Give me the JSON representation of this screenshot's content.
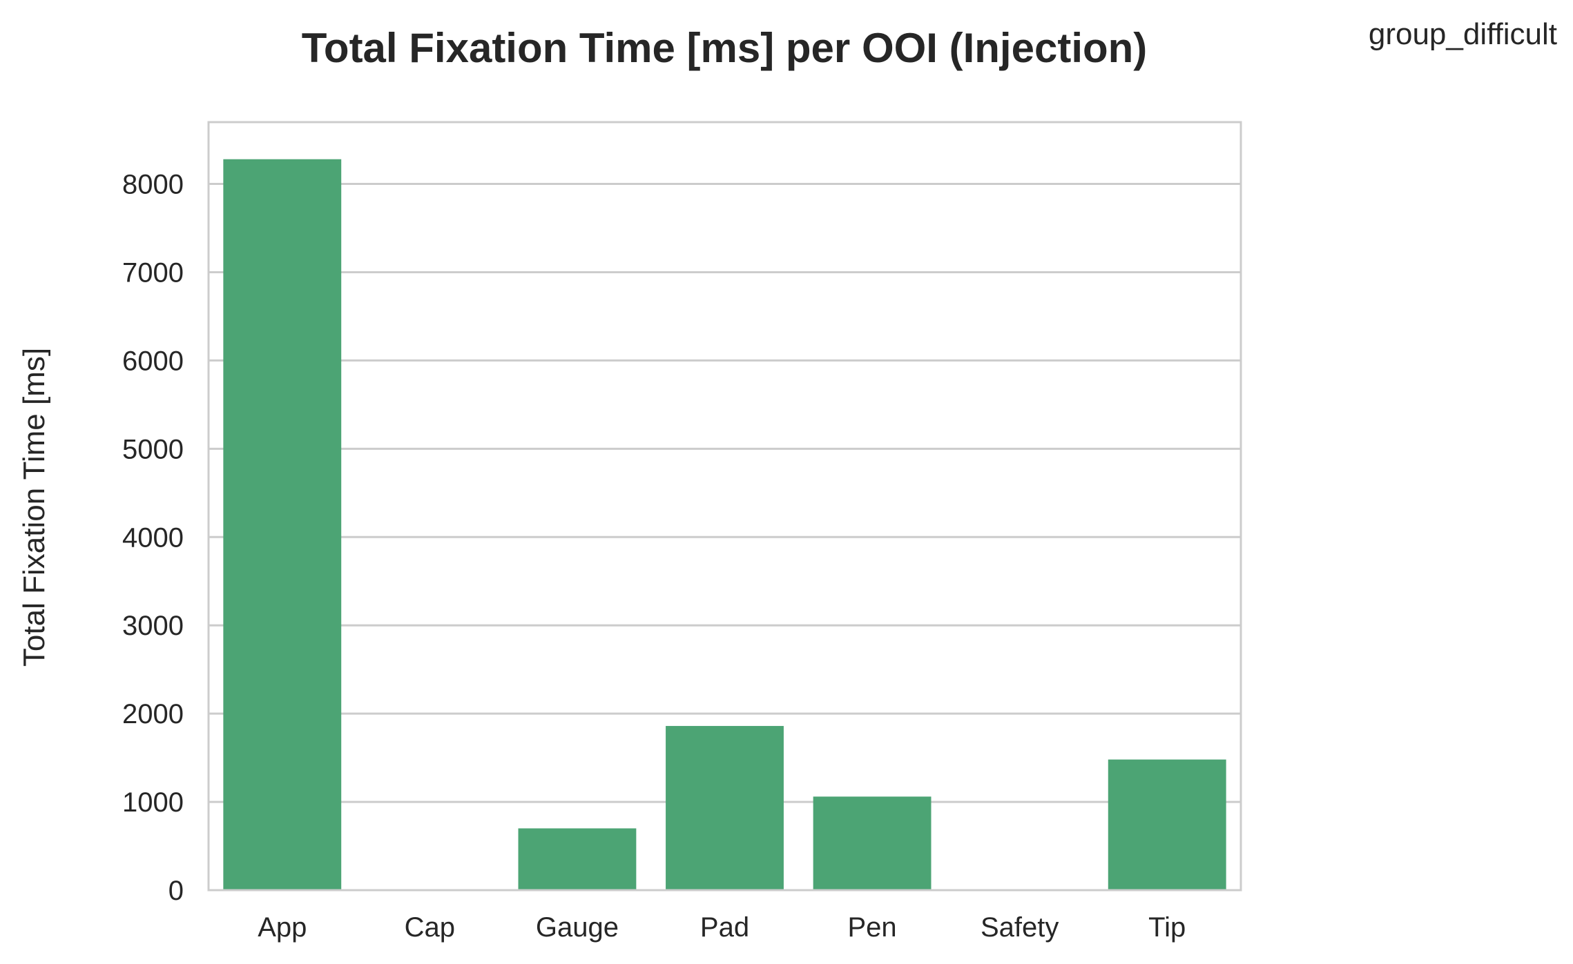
{
  "chart_data": {
    "type": "bar",
    "title": "Total Fixation Time [ms] per OOI (Injection)",
    "corner_label": "group_difficult",
    "xlabel": "",
    "ylabel": "Total Fixation Time [ms]",
    "categories": [
      "App",
      "Cap",
      "Gauge",
      "Pad",
      "Pen",
      "Safety",
      "Tip"
    ],
    "values": [
      8280,
      0,
      700,
      1860,
      1060,
      0,
      1480
    ],
    "ylim": [
      0,
      8700
    ],
    "yticks": [
      0,
      1000,
      2000,
      3000,
      4000,
      5000,
      6000,
      7000,
      8000
    ],
    "grid": true,
    "grid_axis": "y",
    "legend": "none",
    "colors": {
      "bar": "#4ca474",
      "grid": "#cccccc",
      "frame": "#cccccc",
      "text": "#262626",
      "background": "#ffffff"
    }
  }
}
